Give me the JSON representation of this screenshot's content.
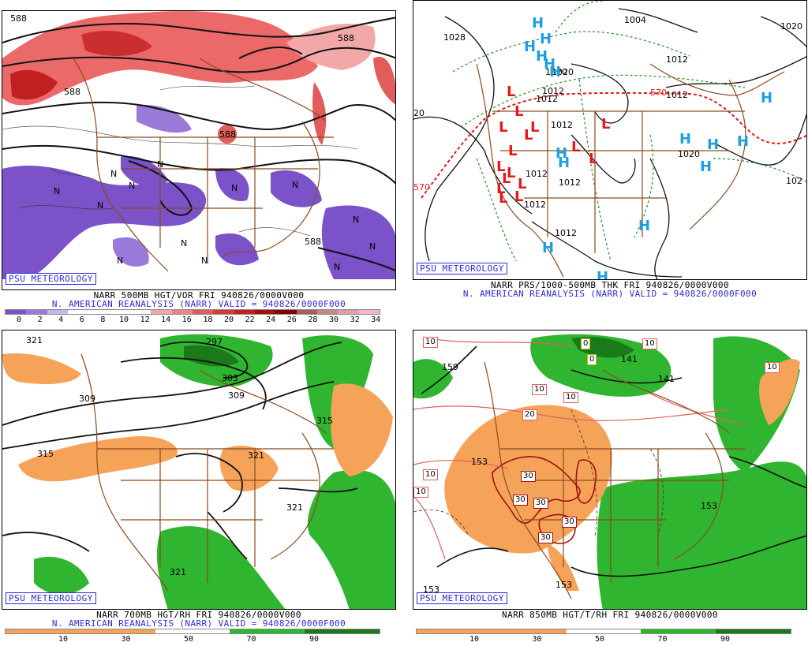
{
  "panels": {
    "p1": {
      "label": "PSU METEOROLOGY",
      "title": "NARR 500MB HGT/VOR FRI 940826/0000V000",
      "subtitle": "N. AMERICAN REANALYSIS (NARR) VALID = 940826/0000F000",
      "scale_ticks": [
        "0",
        "2",
        "4",
        "6",
        "8",
        "10",
        "12",
        "14",
        "16",
        "18",
        "20",
        "22",
        "24",
        "26",
        "28",
        "30",
        "32",
        "34"
      ],
      "scale_colors": [
        "#7b52c8",
        "#9a7ad8",
        "#c9b8ec",
        "#ffffff",
        "#ffffff",
        "#ffffff",
        "#ffffff",
        "#f2a8a8",
        "#ec8585",
        "#e25c5c",
        "#d63b3b",
        "#c22020",
        "#a01010",
        "#800000",
        "#a85d5d",
        "#c08a8a",
        "#dba0a8",
        "#f4b8c4"
      ],
      "contour_labels": [
        "588",
        "588",
        "588",
        "588",
        "588"
      ],
      "vort_marks": [
        "N",
        "N",
        "N",
        "N",
        "N",
        "N",
        "N",
        "N",
        "N",
        "N",
        "N",
        "N",
        "N"
      ]
    },
    "p2": {
      "label": "PSU METEOROLOGY",
      "title": "NARR PRS/1000-500MB THK FRI 940826/0000V000",
      "subtitle": "N. AMERICAN REANALYSIS (NARR) VALID = 940826/0000F000",
      "contour_labels": [
        "1028",
        "1004",
        "1020",
        "1012",
        "1020",
        "1012",
        "1012",
        "1012",
        "1012",
        "1012",
        "1020",
        "1012",
        "1012",
        "1012",
        "1020",
        "102",
        "20",
        "570",
        "570"
      ],
      "highs": [
        "H",
        "H",
        "H",
        "H",
        "H",
        "H",
        "H",
        "H",
        "H",
        "H",
        "H",
        "H",
        "H",
        "H",
        "H",
        "H"
      ],
      "lows": [
        "L",
        "L",
        "L",
        "L",
        "L",
        "L",
        "L",
        "L",
        "L",
        "L",
        "L",
        "L",
        "L",
        "L",
        "L",
        "L"
      ]
    },
    "p3": {
      "label": "PSU METEOROLOGY",
      "title": "NARR 700MB HGT/RH FRI 940826/0000V000",
      "subtitle": "N. AMERICAN REANALYSIS (NARR) VALID = 940826/0000F000",
      "scale_ticks": [
        "10",
        "30",
        "50",
        "70",
        "90"
      ],
      "scale_colors": [
        "#f6a35a",
        "#f6a35a",
        "#ffffff",
        "#2fb52f",
        "#1a7a1a"
      ],
      "contour_labels": [
        "321",
        "297",
        "303",
        "309",
        "309",
        "315",
        "315",
        "321",
        "321",
        "321"
      ]
    },
    "p4": {
      "label": "PSU METEOROLOGY",
      "title": "NARR 850MB HGT/T/RH FRI 940826/0000V000",
      "scale_ticks": [
        "10",
        "30",
        "50",
        "70",
        "90"
      ],
      "scale_colors": [
        "#f6a35a",
        "#f6a35a",
        "#ffffff",
        "#2fb52f",
        "#1a7a1a"
      ],
      "contour_labels": [
        "159",
        "141",
        "141",
        "153",
        "153",
        "153",
        "153"
      ],
      "temp_labels": [
        "10",
        "10",
        "10",
        "10",
        "10",
        "10",
        "10",
        "20",
        "30",
        "30",
        "30",
        "30",
        "30",
        "0",
        "0"
      ]
    }
  }
}
